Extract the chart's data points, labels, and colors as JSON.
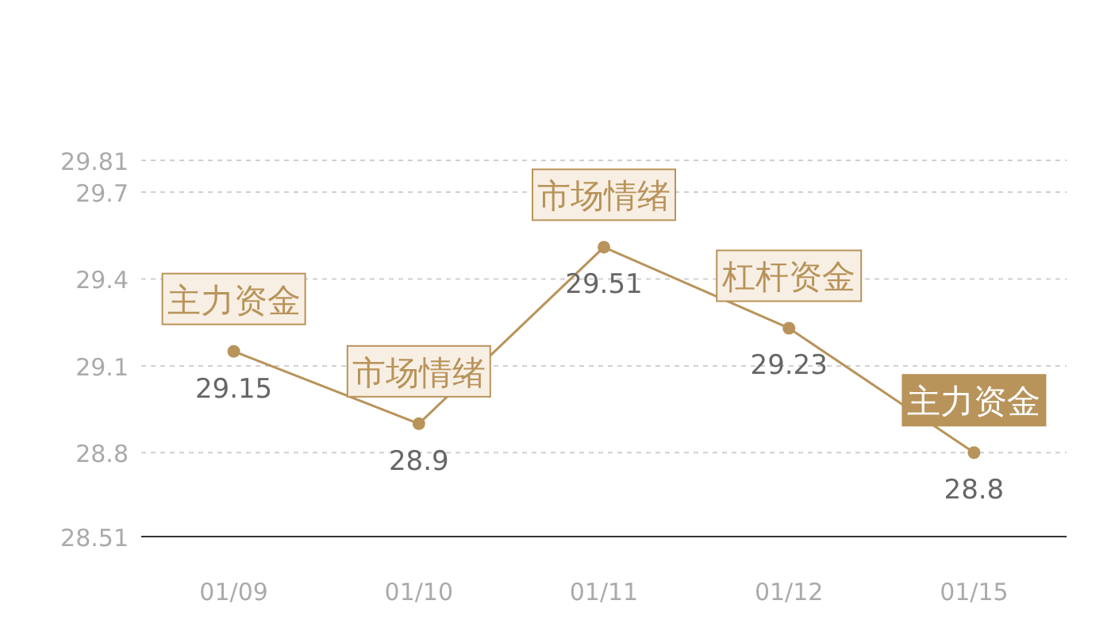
{
  "chart_data": {
    "type": "line",
    "categories": [
      "01/09",
      "01/10",
      "01/11",
      "01/12",
      "01/15"
    ],
    "series": [
      {
        "color": "#b8935a",
        "values": [
          29.15,
          28.9,
          29.51,
          29.23,
          28.8
        ]
      }
    ],
    "ylim": [
      28.51,
      29.81
    ],
    "yticks": [
      28.51,
      28.8,
      29.1,
      29.4,
      29.7,
      29.81
    ],
    "grid": "y",
    "marker": "circle",
    "line_style": "solid",
    "data_labels": true,
    "annotations": [
      {
        "text": "主力资金",
        "x": "01/09",
        "y": 29.15
      },
      {
        "text": "市场情绪",
        "x": "01/10",
        "y": 28.9
      },
      {
        "text": "市场情绪",
        "x": "01/11",
        "y": 29.51
      },
      {
        "text": "杠杆资金",
        "x": "01/12",
        "y": 29.23
      },
      {
        "text": "主力资金",
        "x": "01/15",
        "y": 28.8
      }
    ]
  }
}
